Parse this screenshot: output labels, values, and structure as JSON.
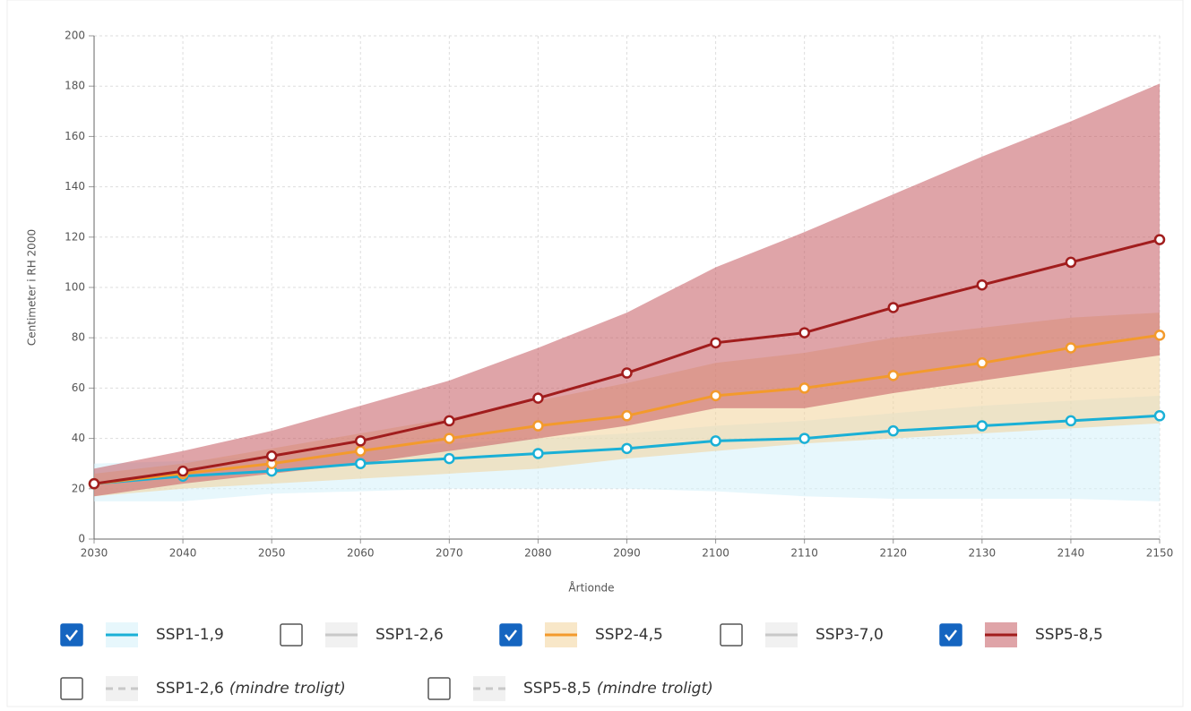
{
  "chart_data": {
    "type": "line",
    "x_label": "Årtionde",
    "y_label": "Centimeter i RH 2000",
    "x": [
      2030,
      2040,
      2050,
      2060,
      2070,
      2080,
      2090,
      2100,
      2110,
      2120,
      2130,
      2140,
      2150
    ],
    "xlim": [
      2030,
      2150
    ],
    "xticks": [
      2030,
      2040,
      2050,
      2060,
      2070,
      2080,
      2090,
      2100,
      2110,
      2120,
      2130,
      2140,
      2150
    ],
    "ylim": [
      0,
      200
    ],
    "yticks": [
      0,
      20,
      40,
      60,
      80,
      100,
      120,
      140,
      160,
      180,
      200
    ],
    "grid": true,
    "series": [
      {
        "name": "SSP1-1,9",
        "visible": true,
        "color": "#1ab0d6",
        "band_color": "#d3f0f9",
        "values": [
          22,
          25,
          27,
          30,
          32,
          34,
          36,
          39,
          40,
          43,
          45,
          47,
          49
        ],
        "low": [
          15,
          15,
          18,
          19,
          20,
          20,
          20,
          19,
          17,
          16,
          16,
          16,
          15
        ],
        "high": [
          30,
          31,
          33,
          36,
          38,
          40,
          42,
          45,
          47,
          50,
          53,
          55,
          57
        ]
      },
      {
        "name": "SSP1-2,6",
        "visible": false,
        "color": "#c8c8c8"
      },
      {
        "name": "SSP2-4,5",
        "visible": true,
        "color": "#f39a2c",
        "band_color": "#f3d39a",
        "values": [
          22,
          26,
          30,
          35,
          40,
          45,
          49,
          57,
          60,
          65,
          70,
          76,
          81
        ],
        "low": [
          17,
          20,
          22,
          24,
          26,
          28,
          32,
          35,
          38,
          40,
          42,
          44,
          46
        ],
        "high": [
          26,
          30,
          36,
          42,
          48,
          55,
          62,
          70,
          74,
          80,
          84,
          88,
          90
        ]
      },
      {
        "name": "SSP3-7,0",
        "visible": false,
        "color": "#c8c8c8"
      },
      {
        "name": "SSP5-8,5",
        "visible": true,
        "color": "#a11d1d",
        "band_color": "#c45a60",
        "values": [
          22,
          27,
          33,
          39,
          47,
          56,
          66,
          78,
          82,
          92,
          101,
          110,
          119
        ],
        "low": [
          17,
          22,
          26,
          30,
          35,
          40,
          45,
          52,
          52,
          58,
          63,
          68,
          73
        ],
        "high": [
          28,
          35,
          43,
          53,
          63,
          76,
          90,
          108,
          122,
          137,
          152,
          166,
          181
        ]
      },
      {
        "name": "SSP1-2,6",
        "note": "(mindre troligt)",
        "visible": false,
        "color": "#c8c8c8",
        "dashed": true
      },
      {
        "name": "SSP5-8,5",
        "note": "(mindre troligt)",
        "visible": false,
        "color": "#c8c8c8",
        "dashed": true
      }
    ]
  }
}
